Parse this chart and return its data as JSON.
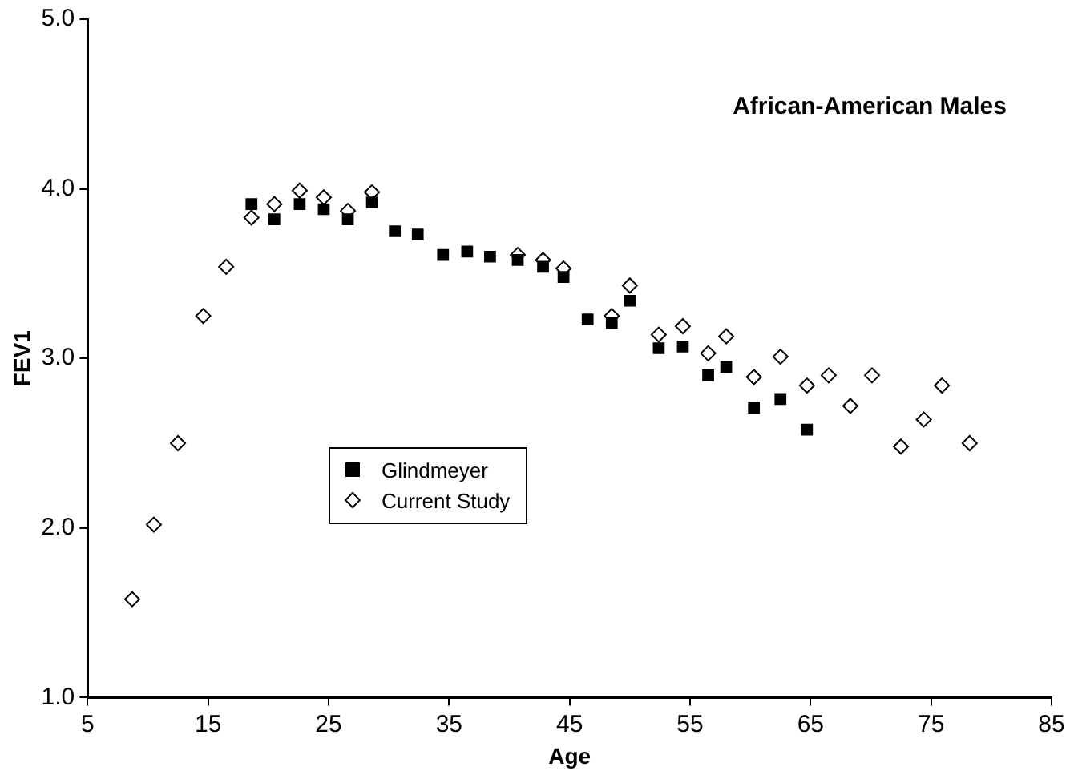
{
  "chart_data": {
    "type": "scatter",
    "title": "African-American Males",
    "xlabel": "Age",
    "ylabel": "FEV1",
    "xlim": [
      5,
      85
    ],
    "xticks": [
      5,
      15,
      25,
      35,
      45,
      55,
      65,
      75,
      85
    ],
    "ylim": [
      1,
      5
    ],
    "yticks": [
      {
        "value": 1,
        "label": "1.0"
      },
      {
        "value": 2,
        "label": "2.0"
      },
      {
        "value": 3,
        "label": "3.0"
      },
      {
        "value": 4,
        "label": "4.0"
      },
      {
        "value": 5,
        "label": "5.0"
      }
    ],
    "grid": false,
    "legend": "center",
    "series": [
      {
        "name": "Glindmeyer",
        "color": "#000000",
        "marker": "square",
        "x": [
          18.6,
          20.5,
          22.6,
          24.6,
          26.6,
          28.6,
          30.5,
          32.4,
          34.5,
          36.5,
          38.4,
          40.7,
          42.8,
          44.5,
          46.5,
          48.5,
          50.0,
          52.4,
          54.4,
          56.5,
          58.0,
          60.3,
          62.5,
          64.7
        ],
        "values": [
          3.91,
          3.82,
          3.91,
          3.88,
          3.82,
          3.92,
          3.75,
          3.73,
          3.61,
          3.63,
          3.6,
          3.58,
          3.54,
          3.48,
          3.23,
          3.21,
          3.34,
          3.06,
          3.07,
          2.9,
          2.95,
          2.71,
          2.76,
          2.58
        ]
      },
      {
        "name": "Current Study",
        "color": "#000000",
        "marker": "diamond",
        "x": [
          8.7,
          10.5,
          12.5,
          14.6,
          16.5,
          18.6,
          20.5,
          22.6,
          24.6,
          26.6,
          28.6,
          30.5,
          32.4,
          40.7,
          42.8,
          44.5,
          46.5,
          48.5,
          50.0,
          52.4,
          54.4,
          56.5,
          58.0,
          60.3,
          62.5,
          64.7,
          66.5,
          68.3,
          70.1,
          72.5,
          74.4,
          75.9,
          78.2
        ],
        "values": [
          1.58,
          2.02,
          2.5,
          3.25,
          3.54,
          3.83,
          3.91,
          3.99,
          3.95,
          3.87,
          3.98,
          null,
          null,
          3.61,
          3.58,
          3.53,
          null,
          3.25,
          3.43,
          3.14,
          3.19,
          3.03,
          3.13,
          2.89,
          3.01,
          2.84,
          2.9,
          2.72,
          2.9,
          2.48,
          2.64,
          2.84,
          2.5
        ]
      }
    ]
  }
}
